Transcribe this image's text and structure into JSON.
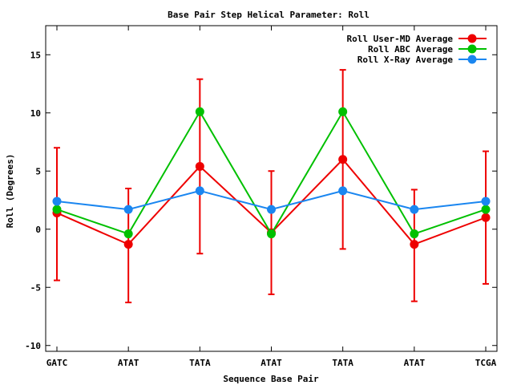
{
  "chart_data": {
    "type": "line",
    "title": "Base Pair Step Helical Parameter: Roll",
    "xlabel": "Sequence Base Pair",
    "ylabel": "Roll (Degrees)",
    "categories": [
      "GATC",
      "ATAT",
      "TATA",
      "ATAT",
      "TATA",
      "ATAT",
      "TCGA"
    ],
    "ylim": [
      -10.5,
      17.5
    ],
    "yticks": [
      -10,
      -5,
      0,
      5,
      10,
      15
    ],
    "ytick_labels": [
      "-10",
      "-5",
      "0",
      "5",
      "10",
      "15"
    ],
    "grid": false,
    "legend_position": "top-right",
    "series": [
      {
        "name": "Roll User-MD Average",
        "color": "#ee0000",
        "values": [
          1.4,
          -1.3,
          5.4,
          -0.3,
          6.0,
          -1.3,
          1.0
        ],
        "err_low": [
          -4.4,
          -6.3,
          -2.1,
          -5.6,
          -1.7,
          -6.2,
          -4.7
        ],
        "err_high": [
          7.0,
          3.5,
          12.9,
          5.0,
          13.7,
          3.4,
          6.7
        ]
      },
      {
        "name": "Roll ABC Average",
        "color": "#00c000",
        "values": [
          1.7,
          -0.4,
          10.1,
          -0.4,
          10.1,
          -0.4,
          1.7
        ]
      },
      {
        "name": "Roll X-Ray Average",
        "color": "#1a86f0",
        "values": [
          2.4,
          1.7,
          3.3,
          1.7,
          3.3,
          1.7,
          2.4
        ]
      }
    ]
  }
}
